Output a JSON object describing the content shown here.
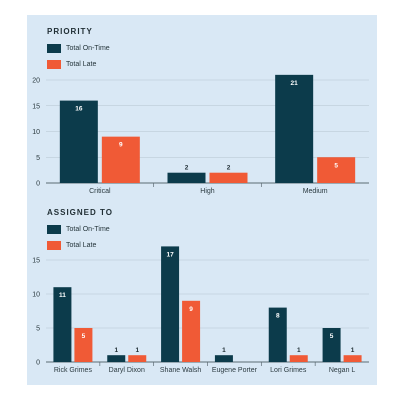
{
  "colors": {
    "on_time": "#0c3b4b",
    "late": "#f05a36",
    "grid": "#b5c3cf",
    "axis": "#5c6b73"
  },
  "legend_labels": {
    "on_time": "Total On-Time",
    "late": "Total Late"
  },
  "chart_data": [
    {
      "type": "bar",
      "title": "PRIORITY",
      "categories": [
        "Critical",
        "High",
        "Medium"
      ],
      "series": [
        {
          "name": "Total On-Time",
          "values": [
            16,
            2,
            21
          ]
        },
        {
          "name": "Total Late",
          "values": [
            9,
            2,
            5
          ]
        }
      ],
      "ylim": [
        0,
        20
      ],
      "yticks": [
        0,
        5,
        10,
        15,
        20
      ],
      "grid": true,
      "legend": "top-left"
    },
    {
      "type": "bar",
      "title": "ASSIGNED TO",
      "categories": [
        "Rick Grimes",
        "Daryl Dixon",
        "Shane Walsh",
        "Eugene Porter",
        "Lori Grimes",
        "Negan L"
      ],
      "series": [
        {
          "name": "Total On-Time",
          "values": [
            11,
            1,
            17,
            1,
            8,
            5
          ]
        },
        {
          "name": "Total Late",
          "values": [
            5,
            1,
            9,
            0,
            1,
            1
          ]
        }
      ],
      "ylim": [
        0,
        15
      ],
      "yticks": [
        0,
        5,
        10,
        15
      ],
      "grid": true,
      "legend": "top-left"
    }
  ]
}
